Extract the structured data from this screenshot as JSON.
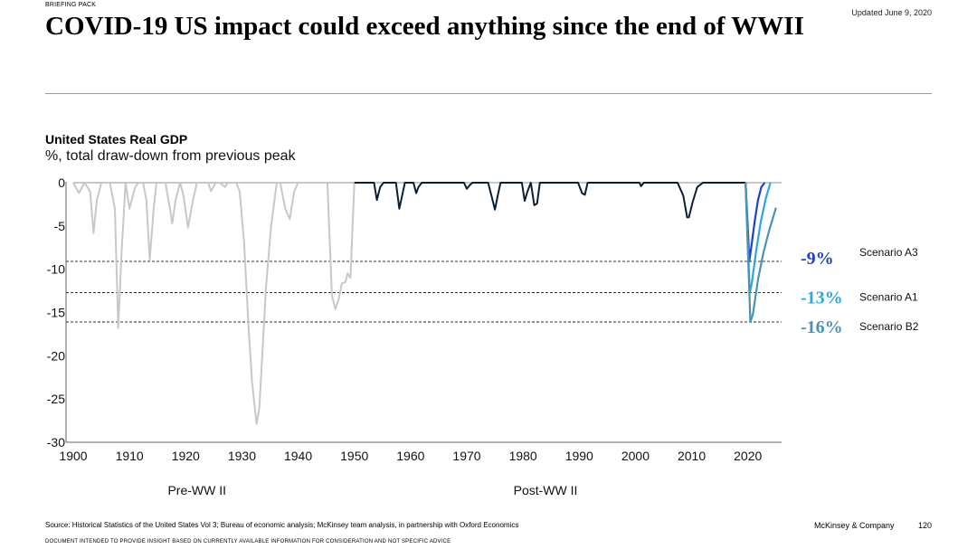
{
  "header": {
    "briefing_label": "BRIEFING PACK",
    "updated": "Updated June 9, 2020",
    "title": "COVID-19 US impact could exceed anything since the end of WWII"
  },
  "chart_data": {
    "type": "line",
    "title": "United States Real GDP",
    "subtitle": "%, total draw-down from previous peak",
    "xlim": [
      1900,
      2026
    ],
    "ylim": [
      -30,
      0
    ],
    "x_ticks": [
      1900,
      1910,
      1920,
      1930,
      1940,
      1950,
      1960,
      1970,
      1980,
      1990,
      2000,
      2010,
      2020
    ],
    "y_ticks": [
      0,
      -5,
      -10,
      -15,
      -20,
      -25,
      -30
    ],
    "periods": [
      {
        "label": "Pre-WW II",
        "center": 1922
      },
      {
        "label": "Post-WW II",
        "center": 1984
      }
    ],
    "series": [
      {
        "name": "Pre-WW II",
        "color": "#c8c8c8",
        "x": [
          1900,
          1901,
          1902,
          1903,
          1903.6,
          1904.2,
          1905,
          1906.5,
          1907.4,
          1908,
          1908.6,
          1909.3,
          1910,
          1911,
          1911.6,
          1912.4,
          1913,
          1913.6,
          1914.3,
          1914.8,
          1915.4,
          1916.4,
          1917.2,
          1917.6,
          1918.2,
          1919,
          1919.6,
          1920.4,
          1921.3,
          1922,
          1923,
          1924,
          1924.5,
          1925.3,
          1926,
          1927,
          1927.5,
          1928.3,
          1929,
          1929.6,
          1930.4,
          1931.2,
          1931.8,
          1932.6,
          1933.1,
          1933.7,
          1934.3,
          1935.2,
          1936.2,
          1936.8,
          1937.7,
          1938.5,
          1939.3,
          1940,
          1940.6,
          1941.4,
          1942.3,
          1943,
          1944,
          1945.2,
          1946,
          1946.6,
          1947.2,
          1947.8,
          1948.4,
          1948.8,
          1949.3,
          1950
        ],
        "y": [
          0,
          -1.2,
          0,
          -1,
          -5.8,
          -2,
          0,
          0,
          -3,
          -16.8,
          -8,
          0,
          -3,
          -0.5,
          0,
          0,
          -2,
          -8.9,
          -3,
          0,
          0,
          0,
          -3,
          -4.7,
          -2,
          0,
          -1.5,
          -5.2,
          -2,
          0,
          0,
          0,
          -1,
          0,
          0,
          -0.5,
          0,
          0,
          0,
          -1,
          -7,
          -17,
          -23,
          -27.9,
          -26,
          -19,
          -12,
          -5,
          0,
          0,
          -3,
          -4.2,
          -1,
          0,
          0,
          0,
          0,
          0,
          0,
          0,
          -13,
          -14.6,
          -13.5,
          -11.6,
          -11.5,
          -10.5,
          -11,
          0
        ]
      },
      {
        "name": "Post-WW II",
        "color": "#0a1e35",
        "x": [
          1950,
          1953.5,
          1954,
          1954.6,
          1955.2,
          1957.4,
          1958,
          1958.5,
          1959,
          1960.5,
          1961,
          1961.4,
          1962,
          1969.5,
          1970,
          1970.5,
          1971,
          1973.8,
          1974.5,
          1975,
          1975.5,
          1976,
          1979.8,
          1980.3,
          1980.8,
          1981.4,
          1982,
          1982.5,
          1983,
          1989.8,
          1990.5,
          1991,
          1991.5,
          2000.7,
          2001,
          2001.5,
          2007.5,
          2008.5,
          2009.2,
          2009.5,
          2010.2,
          2011,
          2012,
          2019.6
        ],
        "y": [
          0,
          0,
          -2,
          -0.5,
          0,
          0,
          -3,
          -1.5,
          0,
          0,
          -1.2,
          -0.5,
          0,
          0,
          -0.7,
          -0.3,
          0,
          0,
          -1.8,
          -3.1,
          -1.5,
          0,
          0,
          -2.1,
          -1,
          0,
          -2.6,
          -2.4,
          0,
          0,
          -1.2,
          -1.4,
          0,
          0,
          -0.4,
          0,
          0,
          -1.5,
          -4,
          -4,
          -2.2,
          -0.5,
          0,
          0
        ]
      },
      {
        "name": "Scenario A3",
        "color": "#1f43c6",
        "x": [
          2019.6,
          2020.05,
          2020.25,
          2020.6,
          2021.2,
          2021.8,
          2022.4,
          2023
        ],
        "y": [
          0,
          -6,
          -9.1,
          -7.5,
          -4.5,
          -2,
          -0.5,
          0
        ]
      },
      {
        "name": "Scenario A1",
        "color": "#2ea5dd",
        "x": [
          2019.6,
          2020.05,
          2020.35,
          2020.7,
          2021.5,
          2022.3,
          2023.2,
          2024
        ],
        "y": [
          0,
          -8,
          -12.7,
          -11.6,
          -7.8,
          -4.5,
          -1.8,
          0
        ]
      },
      {
        "name": "Scenario B2",
        "color": "#4a93b7",
        "x": [
          2019.6,
          2020.1,
          2020.45,
          2020.9,
          2021.8,
          2022.8,
          2023.8,
          2025
        ],
        "y": [
          0,
          -9.5,
          -16.1,
          -15.2,
          -11.2,
          -8,
          -5.5,
          -2.9
        ]
      }
    ],
    "reference_lines": [
      -9.1,
      -12.7,
      -16.1
    ],
    "callouts": [
      {
        "label": "-9%",
        "scenario": "Scenario A3",
        "y": -9.1,
        "color": "#1f43c6"
      },
      {
        "label": "-13%",
        "scenario": "Scenario A1",
        "y": -12.7,
        "color": "#2ea5dd"
      },
      {
        "label": "-16%",
        "scenario": "Scenario B2",
        "y": -16.1,
        "color": "#4a93b7"
      }
    ]
  },
  "footer": {
    "source": "Source: Historical Statistics of the United States Vol 3; Bureau of economic analysis; McKinsey team analysis, in partnership with Oxford Economics",
    "disclaimer": "DOCUMENT INTENDED TO PROVIDE INSIGHT BASED ON CURRENTLY AVAILABLE INFORMATION FOR CONSIDERATION AND NOT SPECIFIC ADVICE",
    "brand": "McKinsey & Company",
    "page": "120"
  }
}
